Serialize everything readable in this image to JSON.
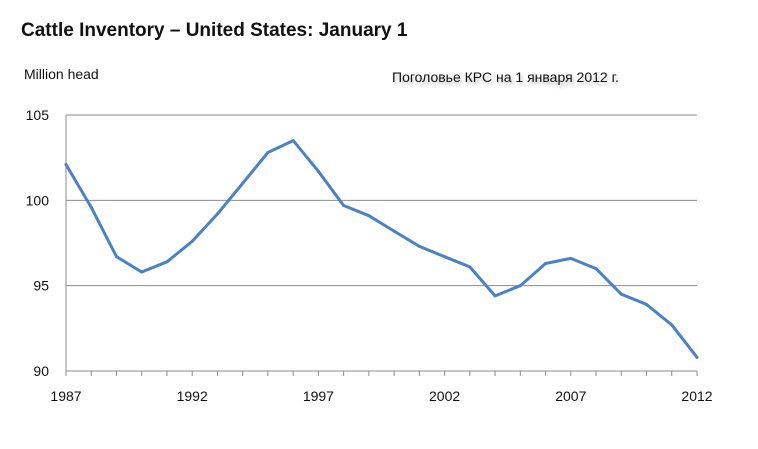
{
  "chart_data": {
    "type": "line",
    "title": "Cattle Inventory – United States: January 1",
    "ylabel": "Million head",
    "annotation": "Поголовье КРС на 1 января 2012 г.",
    "xlim": [
      1987,
      2012
    ],
    "ylim": [
      90,
      105
    ],
    "x_ticks": [
      1987,
      1992,
      1997,
      2002,
      2007,
      2012
    ],
    "y_ticks": [
      90,
      95,
      100,
      105
    ],
    "grid": "horizontal",
    "series": [
      {
        "color": "#4f81bd",
        "x": [
          1987,
          1988,
          1989,
          1990,
          1991,
          1992,
          1993,
          1994,
          1995,
          1996,
          1997,
          1998,
          1999,
          2000,
          2001,
          2002,
          2003,
          2004,
          2005,
          2006,
          2007,
          2008,
          2009,
          2010,
          2011,
          2012
        ],
        "values": [
          102.1,
          99.6,
          96.7,
          95.8,
          96.4,
          97.6,
          99.2,
          101.0,
          102.8,
          103.5,
          101.7,
          99.7,
          99.1,
          98.2,
          97.3,
          96.7,
          96.1,
          94.4,
          95.0,
          96.3,
          96.6,
          96.0,
          94.5,
          93.9,
          92.7,
          90.8
        ]
      }
    ]
  }
}
